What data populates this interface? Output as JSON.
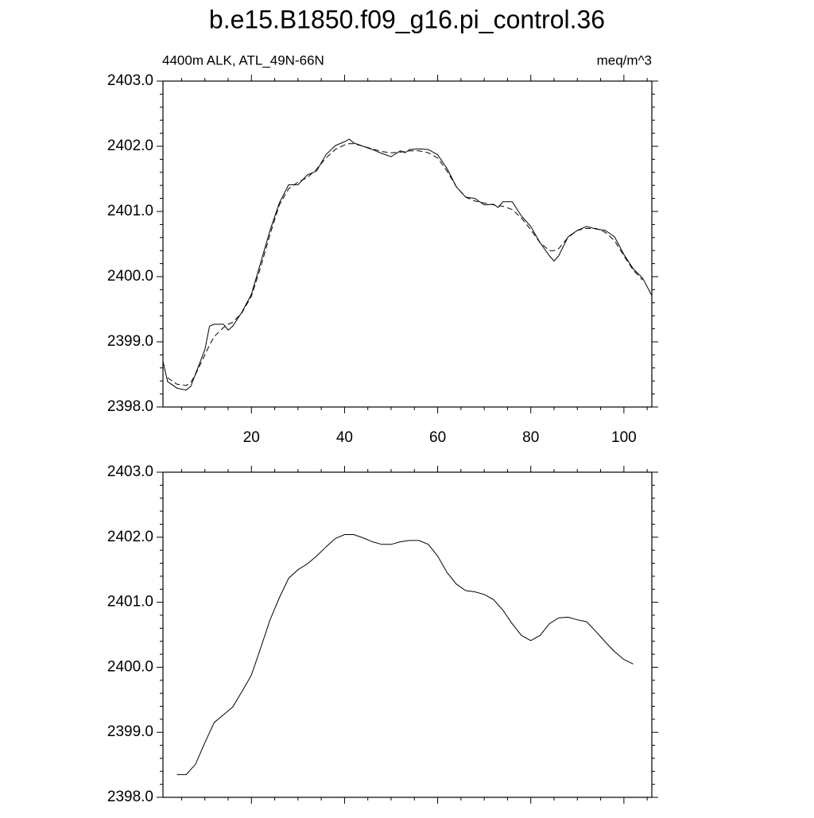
{
  "chart_data": [
    {
      "type": "line",
      "title": "b.e15.B1850.f09_g16.pi_control.36",
      "subtitle_left": "4400m ALK, ATL_49N-66N",
      "subtitle_right": "meq/m^3",
      "x": [
        1,
        2,
        4,
        6,
        7,
        8,
        10,
        11,
        12,
        14,
        15,
        16,
        18,
        20,
        22,
        24,
        26,
        28,
        30,
        32,
        34,
        36,
        38,
        40,
        41,
        42,
        44,
        46,
        48,
        50,
        52,
        53,
        54,
        56,
        58,
        60,
        62,
        64,
        66,
        68,
        70,
        72,
        73,
        74,
        76,
        78,
        80,
        82,
        84,
        85,
        86,
        88,
        90,
        92,
        94,
        96,
        98,
        100,
        102,
        104,
        106
      ],
      "series": [
        {
          "color": "#000000",
          "line_style": "solid",
          "values": [
            2398.7,
            2398.39,
            2398.29,
            2398.26,
            2398.32,
            2398.51,
            2398.88,
            2399.24,
            2399.27,
            2399.27,
            2399.18,
            2399.24,
            2399.46,
            2399.73,
            2400.22,
            2400.71,
            2401.13,
            2401.41,
            2401.41,
            2401.56,
            2401.62,
            2401.87,
            2402.01,
            2402.07,
            2402.11,
            2402.05,
            2402.0,
            2401.95,
            2401.89,
            2401.84,
            2401.93,
            2401.9,
            2401.95,
            2401.96,
            2401.95,
            2401.87,
            2401.66,
            2401.38,
            2401.22,
            2401.2,
            2401.1,
            2401.11,
            2401.06,
            2401.15,
            2401.15,
            2400.93,
            2400.77,
            2400.52,
            2400.32,
            2400.24,
            2400.32,
            2400.61,
            2400.71,
            2400.77,
            2400.73,
            2400.71,
            2400.61,
            2400.34,
            2400.12,
            2399.98,
            2399.71
          ]
        },
        {
          "color": "#000000",
          "line_style": "dashed",
          "values": [
            null,
            2398.45,
            2398.35,
            2398.33,
            2398.38,
            2398.5,
            2398.8,
            2398.95,
            2399.08,
            2399.22,
            2399.27,
            2399.3,
            2399.45,
            2399.7,
            2400.15,
            2400.65,
            2401.1,
            2401.35,
            2401.45,
            2401.52,
            2401.65,
            2401.82,
            2401.95,
            2402.02,
            2402.04,
            2402.04,
            2402.0,
            2401.96,
            2401.92,
            2401.9,
            2401.91,
            2401.92,
            2401.93,
            2401.93,
            2401.9,
            2401.82,
            2401.62,
            2401.38,
            2401.22,
            2401.16,
            2401.13,
            2401.1,
            2401.09,
            2401.08,
            2401.03,
            2400.9,
            2400.72,
            2400.52,
            2400.4,
            2400.4,
            2400.43,
            2400.6,
            2400.71,
            2400.74,
            2400.74,
            2400.68,
            2400.55,
            2400.32,
            2400.1,
            2399.95,
            null
          ]
        }
      ],
      "xlim": [
        1,
        106
      ],
      "xticks": [
        20,
        40,
        60,
        80,
        100
      ],
      "xminorticks": [
        5,
        10,
        15,
        25,
        30,
        35,
        45,
        50,
        55,
        65,
        70,
        75,
        85,
        90,
        95,
        105
      ],
      "ylim": [
        2398,
        2403
      ],
      "yticks": [
        {
          "value": 2398,
          "label": "2398.0"
        },
        {
          "value": 2399,
          "label": "2399.0"
        },
        {
          "value": 2400,
          "label": "2400.0"
        },
        {
          "value": 2401,
          "label": "2401.0"
        },
        {
          "value": 2402,
          "label": "2402.0"
        },
        {
          "value": 2403,
          "label": "2403.0"
        }
      ],
      "yminorticks": [
        2398.2,
        2398.4,
        2398.6,
        2398.8,
        2399.2,
        2399.4,
        2399.6,
        2399.8,
        2400.2,
        2400.4,
        2400.6,
        2400.8,
        2401.2,
        2401.4,
        2401.6,
        2401.8,
        2402.2,
        2402.4,
        2402.6,
        2402.8
      ]
    },
    {
      "type": "line",
      "x": [
        4,
        6,
        8,
        10,
        12,
        14,
        16,
        18,
        20,
        22,
        24,
        26,
        28,
        30,
        32,
        34,
        36,
        38,
        40,
        42,
        44,
        46,
        48,
        50,
        52,
        54,
        56,
        58,
        60,
        62,
        64,
        66,
        68,
        70,
        72,
        74,
        76,
        78,
        80,
        82,
        84,
        86,
        88,
        90,
        92,
        94,
        96,
        98,
        100,
        102
      ],
      "series": [
        {
          "color": "#000000",
          "line_style": "solid",
          "values": [
            2398.35,
            2398.35,
            2398.51,
            2398.84,
            2399.15,
            2399.27,
            2399.39,
            2399.63,
            2399.88,
            2400.3,
            2400.73,
            2401.07,
            2401.37,
            2401.5,
            2401.59,
            2401.71,
            2401.85,
            2401.98,
            2402.04,
            2402.04,
            2401.99,
            2401.93,
            2401.89,
            2401.89,
            2401.93,
            2401.95,
            2401.95,
            2401.89,
            2401.71,
            2401.46,
            2401.28,
            2401.18,
            2401.16,
            2401.12,
            2401.04,
            2400.88,
            2400.67,
            2400.49,
            2400.41,
            2400.49,
            2400.67,
            2400.76,
            2400.77,
            2400.73,
            2400.7,
            2400.55,
            2400.39,
            2400.24,
            2400.12,
            2400.05
          ]
        }
      ],
      "xlim": [
        1,
        106
      ],
      "xticks": [
        20,
        40,
        60,
        80,
        100
      ],
      "xminorticks": [
        5,
        10,
        15,
        25,
        30,
        35,
        45,
        50,
        55,
        65,
        70,
        75,
        85,
        90,
        95,
        105
      ],
      "ylim": [
        2398,
        2403
      ],
      "yticks": [
        {
          "value": 2398,
          "label": "2398.0"
        },
        {
          "value": 2399,
          "label": "2399.0"
        },
        {
          "value": 2400,
          "label": "2400.0"
        },
        {
          "value": 2401,
          "label": "2401.0"
        },
        {
          "value": 2402,
          "label": "2402.0"
        },
        {
          "value": 2403,
          "label": "2403.0"
        }
      ],
      "yminorticks": [
        2398.2,
        2398.4,
        2398.6,
        2398.8,
        2399.2,
        2399.4,
        2399.6,
        2399.8,
        2400.2,
        2400.4,
        2400.6,
        2400.8,
        2401.2,
        2401.4,
        2401.6,
        2401.8,
        2402.2,
        2402.4,
        2402.6,
        2402.8
      ]
    }
  ]
}
